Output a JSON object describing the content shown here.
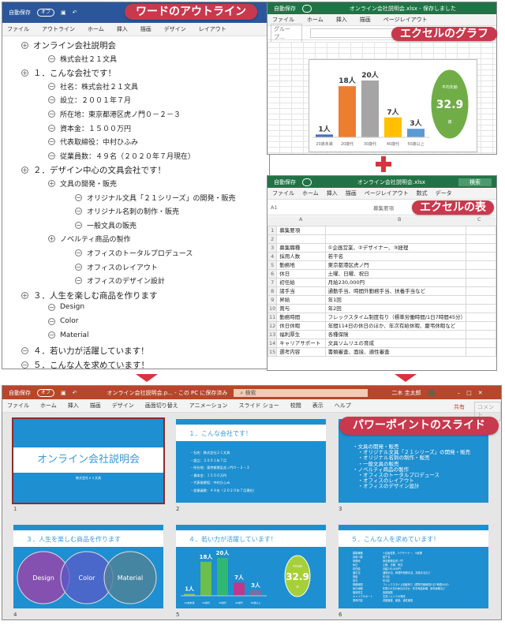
{
  "labels": {
    "word": "ワードのアウトライン",
    "excel_chart": "エクセルのグラフ",
    "excel_table": "エクセルの表",
    "powerpoint": "パワーポイントのスライド"
  },
  "colors": {
    "word": "#2b579a",
    "excel": "#217346",
    "powerpoint": "#b7472a",
    "label": "#c8394d",
    "slide": "#1e8fd0"
  },
  "word": {
    "autosave": "自動保存",
    "toggle": "オフ",
    "tabs": [
      "ファイル",
      "アウトライン",
      "ホーム",
      "挿入",
      "描画",
      "デザイン",
      "レイアウト"
    ],
    "outline": [
      {
        "level": 0,
        "sym": "plus",
        "text": "オンライン会社説明会"
      },
      {
        "level": 1,
        "sym": "minus",
        "text": "株式会社２１文具"
      },
      {
        "level": 0,
        "sym": "plus",
        "text": "１．こんな会社です！"
      },
      {
        "level": 1,
        "sym": "minus",
        "text": "社名：株式会社２１文具"
      },
      {
        "level": 1,
        "sym": "minus",
        "text": "設立：２００１年７月"
      },
      {
        "level": 1,
        "sym": "minus",
        "text": "所在地：東京都港区虎ノ門０－２－３"
      },
      {
        "level": 1,
        "sym": "minus",
        "text": "資本金：１５００万円"
      },
      {
        "level": 1,
        "sym": "minus",
        "text": "代表取締役：中村ひふみ"
      },
      {
        "level": 1,
        "sym": "minus",
        "text": "従業員数：４９名（２０２０年７月現在）"
      },
      {
        "level": 0,
        "sym": "plus",
        "text": "２．デザイン中心の文具会社です！"
      },
      {
        "level": 1,
        "sym": "plus",
        "text": "文具の開発・販売"
      },
      {
        "level": 2,
        "sym": "minus",
        "text": "オリジナル文具「２１シリーズ」の開発・販売"
      },
      {
        "level": 2,
        "sym": "minus",
        "text": "オリジナル名刺の制作・販売"
      },
      {
        "level": 2,
        "sym": "minus",
        "text": "一般文具の販売"
      },
      {
        "level": 1,
        "sym": "plus",
        "text": "ノベルティ商品の製作"
      },
      {
        "level": 2,
        "sym": "minus",
        "text": "オフィスのトータルプロデュース"
      },
      {
        "level": 2,
        "sym": "minus",
        "text": "オフィスのレイアウト"
      },
      {
        "level": 2,
        "sym": "minus",
        "text": "オフィスのデザイン設計"
      },
      {
        "level": 0,
        "sym": "plus",
        "text": "３．人生を楽しむ商品を作ります"
      },
      {
        "level": 1,
        "sym": "minus",
        "text": "Design"
      },
      {
        "level": 1,
        "sym": "minus",
        "text": "Color"
      },
      {
        "level": 1,
        "sym": "minus",
        "text": "Material"
      },
      {
        "level": 0,
        "sym": "minus",
        "text": "４．若い力が活躍しています！"
      },
      {
        "level": 0,
        "sym": "minus",
        "text": "５．こんな人を求めています！"
      }
    ]
  },
  "excel_chart_win": {
    "autosave": "自動保存",
    "title": "オンライン会社説明会.xlsx - 保存しました",
    "tabs": [
      "ファイル",
      "ホーム",
      "挿入",
      "描画",
      "ページレイアウト"
    ],
    "namebox": "グループ..."
  },
  "chart_data": {
    "type": "bar",
    "categories": [
      "20歳未満",
      "20歳代",
      "30歳代",
      "40歳代",
      "50歳以上"
    ],
    "values": [
      1,
      18,
      20,
      7,
      3
    ],
    "data_labels": [
      "1人",
      "18人",
      "20人",
      "7人",
      "3人"
    ],
    "colors": [
      "#4472c4",
      "#ed7d31",
      "#a5a5a5",
      "#ffc000",
      "#5b9bd5"
    ],
    "ylim": [
      0,
      20
    ],
    "callout": {
      "label": "平均年齢",
      "value": "32.9",
      "unit": "歳",
      "color": "#70ad47"
    }
  },
  "excel_table_win": {
    "autosave": "自動保存",
    "title": "オンライン会社説明会.xlsx",
    "search": "検索",
    "tabs": [
      "ファイル",
      "ホーム",
      "挿入",
      "描画",
      "ページレイアウト",
      "数式",
      "データ"
    ],
    "namebox": "A1",
    "formula": "募集要項",
    "cols": [
      "A",
      "B",
      "C"
    ],
    "rows": [
      [
        "募集要項",
        ""
      ],
      [
        "",
        ""
      ],
      [
        "募集職種",
        "①企画営業、②デザイナー、③経理"
      ],
      [
        "採用人数",
        "若干名"
      ],
      [
        "勤務地",
        "東京都港区虎ノ門"
      ],
      [
        "休日",
        "土曜、日曜、祝日"
      ],
      [
        "初任給",
        "月給230,000円"
      ],
      [
        "諸手当",
        "通勤手当、時間外勤務手当、扶養手当など"
      ],
      [
        "昇給",
        "年1回"
      ],
      [
        "賞与",
        "年2回"
      ],
      [
        "勤務時間",
        "フレックスタイム制度有り（標準労働時間/1日7時間45分）"
      ],
      [
        "休日休暇",
        "年間114日の休日のほか、年次有給休暇、慶弔休暇など"
      ],
      [
        "福利厚生",
        "各種保険"
      ],
      [
        "キャリアサポート",
        "文具ソムリエの育成"
      ],
      [
        "選考内容",
        "書類審査、面接、適性審査"
      ]
    ]
  },
  "ppt": {
    "autosave": "自動保存",
    "toggle": "オフ",
    "title": "オンライン会社説明会.p... - この PC に保存済み",
    "search": "検索",
    "user": "二木 圭太郎",
    "tabs": [
      "ファイル",
      "ホーム",
      "挿入",
      "描画",
      "デザイン",
      "画面切り替え",
      "アニメーション",
      "スライド ショー",
      "校閲",
      "表示",
      "ヘルプ"
    ],
    "share": "共有",
    "comment": "コメント",
    "slides": [
      {
        "num": "1",
        "title": "オンライン会社説明会",
        "subtitle": "株式会社２１文具"
      },
      {
        "num": "2",
        "title": "１．こんな会社です！",
        "lines": [
          "・社名：株式会社２１文具",
          "・設立：２００１年７月",
          "・所在地：東京都港区虎ノ門０－２－３",
          "・資本金：１５００万円",
          "・代表取締役：中村ひふみ",
          "・従業員数：４９名（２０２０年７月現在）"
        ]
      },
      {
        "num": "3",
        "lines": [
          "・文具の開発・販売",
          "　・オリジナル文具「２１シリーズ」の開発・販売",
          "　・オリジナル名刺の制作・販売",
          "　・一般文具の販売",
          "・ノベルティ商品の製作",
          "　・オフィスのトータルプロデュース",
          "　・オフィスのレイアウト",
          "　・オフィスのデザイン設計"
        ]
      },
      {
        "num": "4",
        "title": "３．人生を楽しむ商品を作ります",
        "circles": [
          "Design",
          "Color",
          "Material"
        ]
      },
      {
        "num": "5",
        "title": "４．若い力が活躍しています！",
        "bar_colors": [
          "#9bbb59",
          "#6cbf4a",
          "#2eb872",
          "#c0388e",
          "#7a6fa0"
        ],
        "callout_color": "#a6cf3a"
      },
      {
        "num": "6",
        "title": "５．こんな人を求めています！"
      }
    ]
  }
}
